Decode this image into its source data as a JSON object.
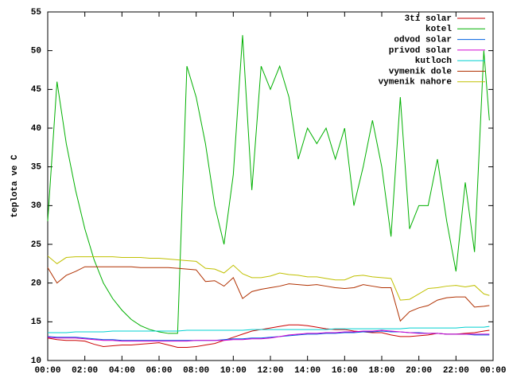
{
  "chart_data": {
    "type": "line",
    "ylabel": "teplota ve C",
    "x": [
      0,
      0.5,
      1,
      1.5,
      2,
      2.5,
      3,
      3.5,
      4,
      4.5,
      5,
      5.5,
      6,
      6.5,
      7,
      7.5,
      8,
      8.5,
      9,
      9.5,
      10,
      10.5,
      11,
      11.5,
      12,
      12.5,
      13,
      13.5,
      14,
      14.5,
      15,
      15.5,
      16,
      16.5,
      17,
      17.5,
      18,
      18.5,
      19,
      19.5,
      20,
      20.5,
      21,
      21.5,
      22,
      22.5,
      23,
      23.5,
      23.8
    ],
    "xlim": [
      0,
      24
    ],
    "xticks": [
      {
        "value": 0,
        "label": "00:00"
      },
      {
        "value": 2,
        "label": "02:00"
      },
      {
        "value": 4,
        "label": "04:00"
      },
      {
        "value": 6,
        "label": "06:00"
      },
      {
        "value": 8,
        "label": "08:00"
      },
      {
        "value": 10,
        "label": "10:00"
      },
      {
        "value": 12,
        "label": "12:00"
      },
      {
        "value": 14,
        "label": "14:00"
      },
      {
        "value": 16,
        "label": "16:00"
      },
      {
        "value": 18,
        "label": "18:00"
      },
      {
        "value": 20,
        "label": "20:00"
      },
      {
        "value": 22,
        "label": "22:00"
      },
      {
        "value": 24,
        "label": "00:00"
      }
    ],
    "ylim": [
      10,
      55
    ],
    "yticks": [
      10,
      15,
      20,
      25,
      30,
      35,
      40,
      45,
      50,
      55
    ],
    "legend": "top-right",
    "series": [
      {
        "name": "3ti solar",
        "color": "#cc0000",
        "values": [
          12.9,
          12.7,
          12.6,
          12.6,
          12.5,
          12.1,
          11.8,
          11.9,
          12.0,
          12.0,
          12.1,
          12.2,
          12.3,
          12.0,
          11.7,
          11.7,
          11.8,
          12.0,
          12.2,
          12.6,
          13.0,
          13.4,
          13.8,
          14.0,
          14.2,
          14.4,
          14.6,
          14.6,
          14.5,
          14.3,
          14.1,
          14.0,
          14.0,
          13.8,
          13.7,
          13.6,
          13.6,
          13.3,
          13.1,
          13.1,
          13.2,
          13.3,
          13.5,
          13.4,
          13.4,
          13.5,
          13.6,
          13.8,
          13.9
        ]
      },
      {
        "name": "kotel",
        "color": "#00b000",
        "values": [
          28,
          46,
          38,
          32,
          27,
          23,
          20,
          18,
          16.5,
          15.3,
          14.5,
          14,
          13.7,
          13.5,
          13.5,
          48,
          44,
          38,
          30,
          25,
          34,
          52,
          32,
          48,
          45,
          48,
          44,
          36,
          40,
          38,
          40,
          36,
          40,
          30,
          35,
          41,
          35,
          26,
          44,
          27,
          30,
          30,
          36,
          28,
          21.5,
          33,
          24,
          50,
          41
        ]
      },
      {
        "name": "odvod solar",
        "color": "#0060e0",
        "values": [
          13.1,
          13.0,
          13.0,
          13.0,
          12.9,
          12.8,
          12.7,
          12.7,
          12.6,
          12.6,
          12.6,
          12.6,
          12.6,
          12.6,
          12.6,
          12.6,
          12.6,
          12.6,
          12.6,
          12.7,
          12.8,
          12.8,
          12.9,
          12.9,
          13.0,
          13.1,
          13.2,
          13.3,
          13.4,
          13.4,
          13.5,
          13.5,
          13.6,
          13.6,
          13.7,
          13.7,
          13.8,
          13.7,
          13.7,
          13.6,
          13.6,
          13.5,
          13.5,
          13.4,
          13.4,
          13.4,
          13.3,
          13.3,
          13.3
        ]
      },
      {
        "name": "privod solar",
        "color": "#d000d0",
        "values": [
          13.0,
          12.9,
          12.9,
          12.9,
          12.8,
          12.7,
          12.6,
          12.6,
          12.5,
          12.5,
          12.5,
          12.5,
          12.5,
          12.5,
          12.5,
          12.5,
          12.6,
          12.6,
          12.6,
          12.6,
          12.7,
          12.7,
          12.8,
          12.8,
          12.9,
          13.1,
          13.3,
          13.4,
          13.5,
          13.5,
          13.6,
          13.6,
          13.7,
          13.7,
          13.8,
          13.8,
          13.9,
          13.8,
          13.7,
          13.6,
          13.5,
          13.5,
          13.5,
          13.4,
          13.4,
          13.4,
          13.4,
          13.4,
          13.4
        ]
      },
      {
        "name": "kutloch",
        "color": "#00d0d0",
        "values": [
          13.6,
          13.6,
          13.6,
          13.7,
          13.7,
          13.7,
          13.7,
          13.8,
          13.8,
          13.8,
          13.8,
          13.8,
          13.8,
          13.8,
          13.8,
          13.9,
          13.9,
          13.9,
          13.9,
          13.9,
          13.9,
          13.9,
          14.0,
          14.0,
          14.0,
          14.0,
          14.0,
          14.0,
          14.0,
          14.0,
          14.0,
          14.1,
          14.1,
          14.1,
          14.1,
          14.1,
          14.1,
          14.1,
          14.1,
          14.2,
          14.2,
          14.2,
          14.2,
          14.2,
          14.2,
          14.3,
          14.3,
          14.3,
          14.4
        ]
      },
      {
        "name": "vymenik dole",
        "color": "#b03000",
        "values": [
          22,
          20,
          21,
          21.5,
          22.1,
          22.1,
          22.1,
          22.1,
          22.1,
          22.1,
          22.0,
          22.0,
          22.0,
          22.0,
          21.9,
          21.8,
          21.7,
          20.2,
          20.3,
          19.6,
          20.7,
          18.0,
          18.9,
          19.2,
          19.4,
          19.6,
          19.9,
          19.8,
          19.7,
          19.8,
          19.6,
          19.4,
          19.3,
          19.4,
          19.8,
          19.6,
          19.4,
          19.4,
          15.1,
          16.3,
          16.8,
          17.1,
          17.8,
          18.1,
          18.2,
          18.2,
          16.9,
          17.0,
          17.1
        ]
      },
      {
        "name": "vymenik nahore",
        "color": "#c0c000",
        "values": [
          23.5,
          22.5,
          23.3,
          23.4,
          23.4,
          23.4,
          23.4,
          23.4,
          23.3,
          23.3,
          23.3,
          23.2,
          23.2,
          23.1,
          23.0,
          22.9,
          22.8,
          21.9,
          21.8,
          21.3,
          22.3,
          21.2,
          20.7,
          20.7,
          20.9,
          21.3,
          21.1,
          21.0,
          20.8,
          20.8,
          20.6,
          20.4,
          20.4,
          20.9,
          21.0,
          20.8,
          20.7,
          20.6,
          17.8,
          17.9,
          18.6,
          19.3,
          19.4,
          19.6,
          19.7,
          19.5,
          19.7,
          18.6,
          18.4
        ]
      }
    ]
  }
}
